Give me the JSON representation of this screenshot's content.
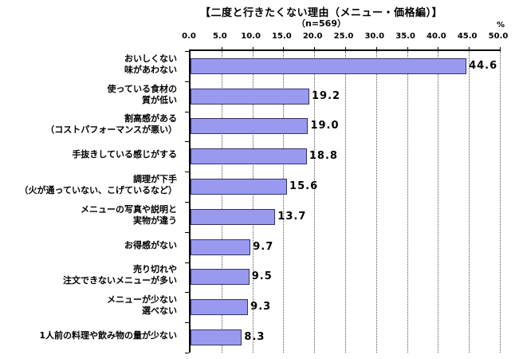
{
  "title": "【二度と行きたくない理由（メニュー・価格編）】",
  "subtitle": "（n=569）",
  "percent_label": "%",
  "colors": {
    "bar_fill": "#9999f0",
    "bar_border": "#333366",
    "axis": "#000000",
    "grid": "#555555",
    "background": "#ffffff"
  },
  "chart_data": {
    "type": "bar",
    "orientation": "horizontal",
    "title": "【二度と行きたくない理由（メニュー・価格編）】",
    "subtitle": "（n=569）",
    "xlabel": "%",
    "xlim": [
      0,
      50
    ],
    "xticks": [
      0,
      5,
      10,
      15,
      20,
      25,
      30,
      35,
      40,
      45,
      50
    ],
    "xtick_labels": [
      "0.0",
      "5.0",
      "10.0",
      "15.0",
      "20.0",
      "25.0",
      "30.0",
      "35.0",
      "40.0",
      "45.0",
      "50.0"
    ],
    "grid": "dotted-vertical",
    "legend": "none",
    "categories": [
      [
        "おいしくない",
        "味があわない"
      ],
      [
        "使っている食材の",
        "質が低い"
      ],
      [
        "割高感がある",
        "（コストパフォーマンスが悪い）"
      ],
      [
        "手抜きしている感じがする"
      ],
      [
        "調理が下手",
        "（火が通っていない、こげているなど）"
      ],
      [
        "メニューの写真や説明と",
        "実物が違う"
      ],
      [
        "お得感がない"
      ],
      [
        "売り切れや",
        "注文できないメニューが多い"
      ],
      [
        "メニューが少ない",
        "選べない"
      ],
      [
        "1人前の料理や飲み物の量が少ない"
      ]
    ],
    "values": [
      44.6,
      19.2,
      19.0,
      18.8,
      15.6,
      13.7,
      9.7,
      9.5,
      9.3,
      8.3
    ],
    "value_labels": [
      "44.6",
      "19.2",
      "19.0",
      "18.8",
      "15.6",
      "13.7",
      "9.7",
      "9.5",
      "9.3",
      "8.3"
    ]
  }
}
